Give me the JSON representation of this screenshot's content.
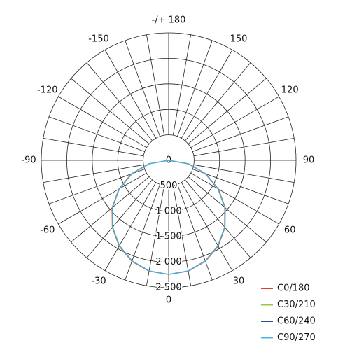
{
  "chart_data": {
    "type": "polar",
    "rlim": [
      0,
      2500
    ],
    "rticks": [
      0,
      500,
      {
        "value": 1000,
        "label": "1 000"
      },
      {
        "value": 1500,
        "label": "1 500"
      },
      {
        "value": 2000,
        "label": "2 000"
      },
      {
        "value": 2500,
        "label": "2 500"
      }
    ],
    "angleticks": [
      0,
      30,
      60,
      90,
      120,
      150,
      {
        "value": 180,
        "label": "-/+ 180"
      },
      -150,
      -120,
      -90,
      -60,
      -30
    ],
    "angles": [
      -90,
      -80,
      -70,
      -60,
      -50,
      -40,
      -30,
      -20,
      -10,
      0,
      10,
      20,
      30,
      40,
      50,
      60,
      70,
      80,
      90
    ],
    "series": [
      {
        "name": "C0/180",
        "color": "#e03c31",
        "values": [
          0,
          400,
          780,
          1130,
          1450,
          1720,
          1945,
          2110,
          2210,
          2240,
          2210,
          2110,
          1945,
          1720,
          1450,
          1130,
          780,
          400,
          0
        ]
      },
      {
        "name": "C30/210",
        "color": "#9bc53d",
        "values": [
          0,
          395,
          770,
          1125,
          1445,
          1715,
          1940,
          2105,
          2205,
          2240,
          2205,
          2105,
          1940,
          1715,
          1445,
          1125,
          770,
          395,
          0
        ]
      },
      {
        "name": "C60/240",
        "color": "#2c4f8f",
        "values": [
          0,
          388,
          765,
          1118,
          1438,
          1710,
          1935,
          2100,
          2205,
          2240,
          2205,
          2100,
          1935,
          1710,
          1438,
          1118,
          765,
          388,
          0
        ]
      },
      {
        "name": "C90/270",
        "color": "#4fb3e0",
        "values": [
          0,
          385,
          762,
          1115,
          1435,
          1708,
          1932,
          2100,
          2203,
          2240,
          2203,
          2100,
          1932,
          1708,
          1435,
          1115,
          762,
          385,
          0
        ]
      }
    ]
  }
}
